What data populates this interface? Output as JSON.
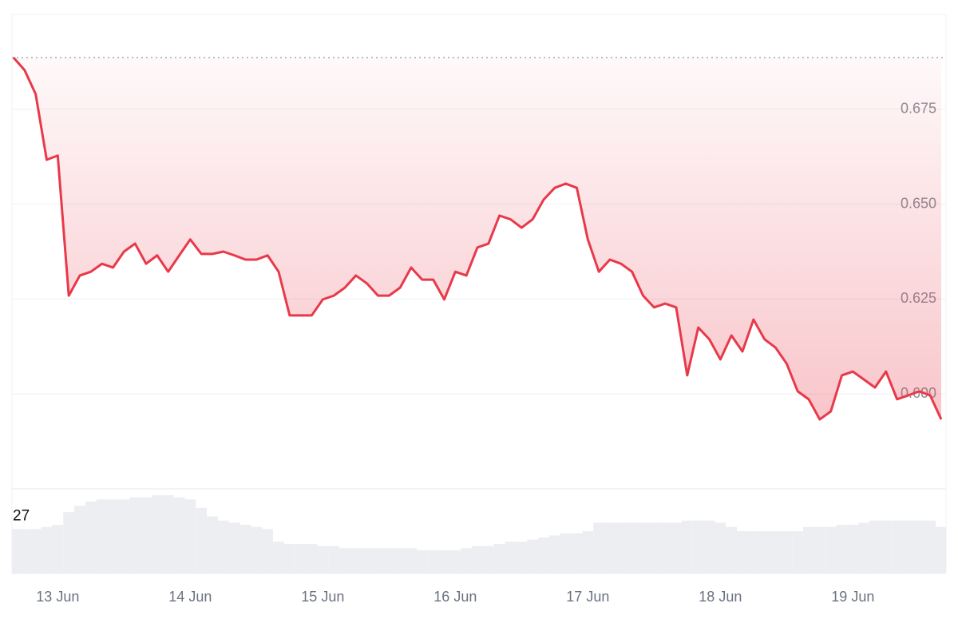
{
  "chart_data": {
    "type": "line",
    "categories": [
      null,
      null,
      null,
      null,
      "13 Jun",
      null,
      null,
      null,
      null,
      null,
      null,
      null,
      null,
      null,
      null,
      null,
      "14 Jun",
      null,
      null,
      null,
      null,
      null,
      null,
      null,
      null,
      null,
      null,
      null,
      "15 Jun",
      null,
      null,
      null,
      null,
      null,
      null,
      null,
      null,
      null,
      null,
      null,
      "16 Jun",
      null,
      null,
      null,
      null,
      null,
      null,
      null,
      null,
      null,
      null,
      null,
      "17 Jun",
      null,
      null,
      null,
      null,
      null,
      null,
      null,
      null,
      null,
      null,
      null,
      "18 Jun",
      null,
      null,
      null,
      null,
      null,
      null,
      null,
      null,
      null,
      null,
      null,
      "19 Jun",
      null,
      null,
      null,
      null,
      null,
      null,
      null,
      null
    ],
    "values": [
      0.6886,
      0.6853,
      0.679,
      0.6617,
      0.6628,
      0.6259,
      0.6312,
      0.6322,
      0.6343,
      0.6333,
      0.6375,
      0.6396,
      0.6343,
      0.6365,
      0.6322,
      0.6365,
      0.6407,
      0.6369,
      0.6369,
      0.6375,
      0.6365,
      0.6354,
      0.6354,
      0.6365,
      0.6322,
      0.6207,
      0.6207,
      0.6207,
      0.6249,
      0.6259,
      0.628,
      0.6312,
      0.6291,
      0.6259,
      0.6259,
      0.628,
      0.6333,
      0.6301,
      0.6301,
      0.6249,
      0.6322,
      0.6312,
      0.6386,
      0.6396,
      0.647,
      0.646,
      0.6438,
      0.646,
      0.6512,
      0.6543,
      0.6554,
      0.6543,
      0.6407,
      0.6322,
      0.6354,
      0.6343,
      0.6322,
      0.6259,
      0.6228,
      0.6238,
      0.6228,
      0.6049,
      0.6175,
      0.6144,
      0.6091,
      0.6154,
      0.6112,
      0.6196,
      0.6144,
      0.6122,
      0.608,
      0.6007,
      0.5986,
      0.5933,
      0.5954,
      0.6049,
      0.6059,
      0.6038,
      0.6017,
      0.6059,
      0.5986,
      0.5996,
      0.6007,
      0.5996,
      0.5933
    ],
    "color": "#e8394a",
    "ylim": [
      0.575,
      0.7
    ],
    "yticks": [
      {
        "value": 0.6,
        "label": "0.600"
      },
      {
        "value": 0.625,
        "label": "0.625"
      },
      {
        "value": 0.65,
        "label": "0.650"
      },
      {
        "value": 0.675,
        "label": "0.675"
      }
    ],
    "grid": true,
    "volume": {
      "values": [
        21,
        21,
        21,
        22,
        23,
        29,
        32,
        34,
        35,
        35,
        35,
        36,
        36,
        37,
        37,
        36,
        35,
        31,
        27,
        25,
        24,
        23,
        22,
        21,
        15,
        14,
        14,
        14,
        13,
        13,
        12,
        12,
        12,
        12,
        12,
        12,
        12,
        11,
        11,
        11,
        11,
        12,
        13,
        13,
        14,
        15,
        15,
        16,
        17,
        18,
        19,
        19,
        20,
        24,
        24,
        24,
        24,
        24,
        24,
        24,
        24,
        25,
        25,
        25,
        24,
        22,
        20,
        20,
        20,
        20,
        20,
        20,
        22,
        22,
        22,
        23,
        23,
        24,
        25,
        25,
        25,
        25,
        25,
        25,
        22
      ],
      "color": "#eceef1",
      "ylim": [
        0,
        40
      ],
      "yticks": [
        27
      ]
    }
  }
}
